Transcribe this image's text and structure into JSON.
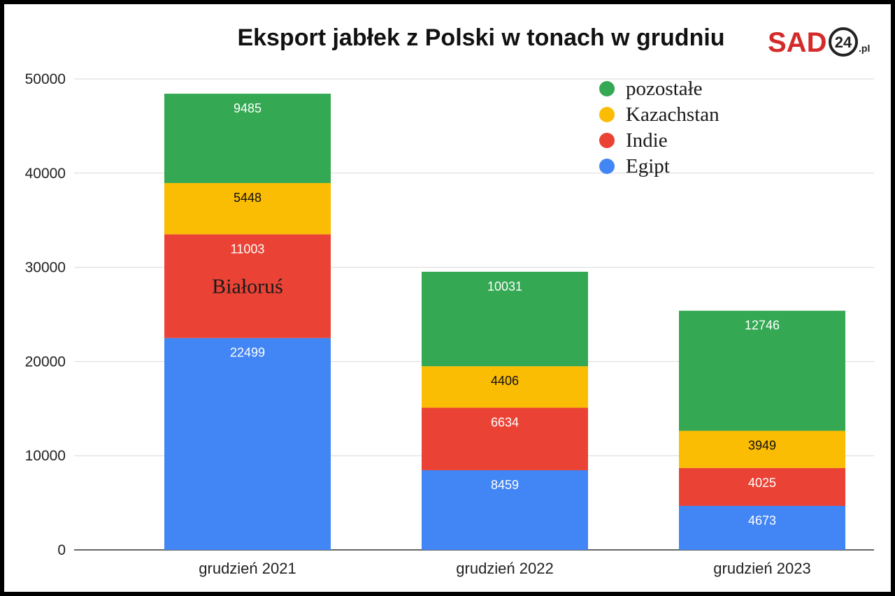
{
  "logo": {
    "brand": "SAD",
    "number": "24",
    "suffix": ".pl"
  },
  "chart_data": {
    "type": "bar",
    "stacked": true,
    "title": "Eksport jabłek z Polski w tonach w grudniu",
    "xlabel": "",
    "ylabel": "",
    "ylim": [
      0,
      50000
    ],
    "yticks": [
      "0",
      "10000",
      "20000",
      "30000",
      "40000",
      "50000"
    ],
    "grid": true,
    "legend_position": "top-right",
    "categories": [
      "grudzień 2021",
      "grudzień 2022",
      "grudzień 2023"
    ],
    "series": [
      {
        "name": "Egipt",
        "color": "#4285F4",
        "label_color": "#ffffff",
        "values": [
          22499,
          8459,
          4673
        ]
      },
      {
        "name": "Indie",
        "color": "#EA4335",
        "label_color": "#ffffff",
        "values": [
          11003,
          6634,
          4025
        ]
      },
      {
        "name": "Kazachstan",
        "color": "#FBBC04",
        "label_color": "#111111",
        "values": [
          5448,
          4406,
          3949
        ]
      },
      {
        "name": "pozostałe",
        "color": "#34A853",
        "label_color": "#ffffff",
        "values": [
          9485,
          10031,
          12746
        ]
      }
    ],
    "legend_order": [
      "pozostałe",
      "Kazachstan",
      "Indie",
      "Egipt"
    ],
    "annotations": [
      {
        "text": "Białoruś",
        "category": "grudzień 2021",
        "y": 28000
      }
    ]
  }
}
